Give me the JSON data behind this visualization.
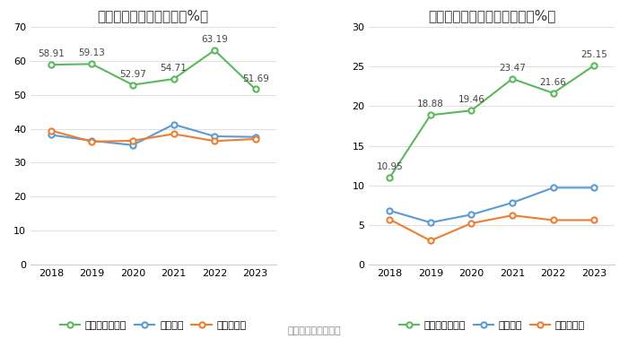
{
  "years": [
    2018,
    2019,
    2020,
    2021,
    2022,
    2023
  ],
  "chart1": {
    "title": "近年来资产负债率情况（%）",
    "green_label": "公司资产负债率",
    "blue_label": "行业均值",
    "orange_label": "行业中位数",
    "green_values": [
      58.91,
      59.13,
      52.97,
      54.71,
      63.19,
      51.69
    ],
    "blue_values": [
      38.2,
      36.5,
      35.2,
      41.3,
      37.8,
      37.6
    ],
    "orange_values": [
      39.5,
      36.2,
      36.5,
      38.5,
      36.4,
      37.0
    ],
    "ylim": [
      0,
      70
    ],
    "yticks": [
      0,
      10,
      20,
      30,
      40,
      50,
      60,
      70
    ]
  },
  "chart2": {
    "title": "近年来有息资产负债率情况（%）",
    "green_label": "有息资产负债率",
    "blue_label": "行业均值",
    "orange_label": "行业中位数",
    "green_values": [
      10.95,
      18.88,
      19.46,
      23.47,
      21.66,
      25.15
    ],
    "blue_values": [
      6.8,
      5.3,
      6.3,
      7.8,
      9.7,
      9.7
    ],
    "orange_values": [
      5.7,
      3.0,
      5.2,
      6.2,
      5.6,
      5.6
    ],
    "ylim": [
      0,
      30
    ],
    "yticks": [
      0,
      5,
      10,
      15,
      20,
      25,
      30
    ]
  },
  "green_color": "#5cb85c",
  "blue_color": "#5b9bd5",
  "orange_color": "#ed7d31",
  "bg_color": "#ffffff",
  "grid_color": "#e0e0e0",
  "annotation_fontsize": 7.5,
  "legend_fontsize": 8,
  "title_fontsize": 11,
  "tick_fontsize": 8,
  "source_text": "数据来源：恒生聚源"
}
